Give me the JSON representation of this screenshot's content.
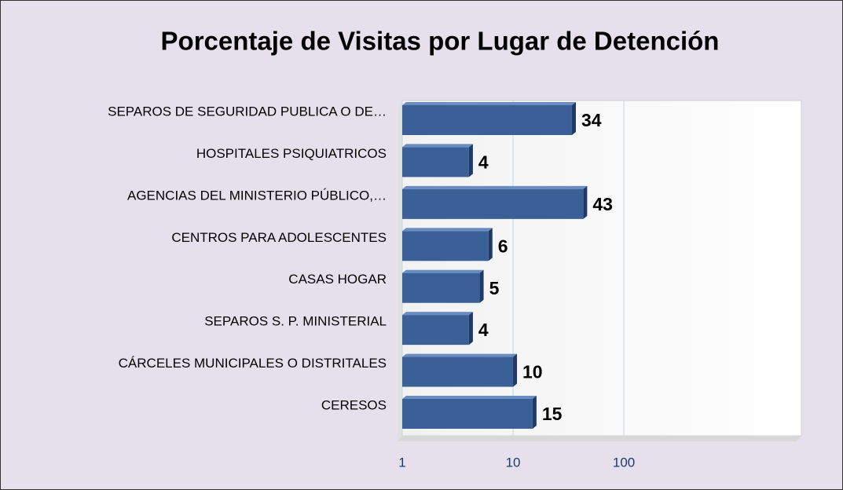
{
  "chart_data": {
    "type": "bar",
    "orientation": "horizontal",
    "title": "Porcentaje de Visitas por Lugar de Detención",
    "categories": [
      "SEPAROS DE SEGURIDAD PUBLICA O DE…",
      "HOSPITALES PSIQUIATRICOS",
      "AGENCIAS DEL MINISTERIO PÚBLICO,…",
      "CENTROS PARA ADOLESCENTES",
      "CASAS HOGAR",
      "SEPAROS S. P.  MINISTERIAL",
      "CÁRCELES MUNICIPALES O DISTRITALES",
      "CERESOS"
    ],
    "values": [
      34,
      4,
      43,
      6,
      5,
      4,
      10,
      15
    ],
    "color": "#3b5f97",
    "xlim": [
      1,
      4000
    ],
    "xticks": [
      1,
      10,
      100
    ],
    "log_scale": true,
    "grid": true
  }
}
